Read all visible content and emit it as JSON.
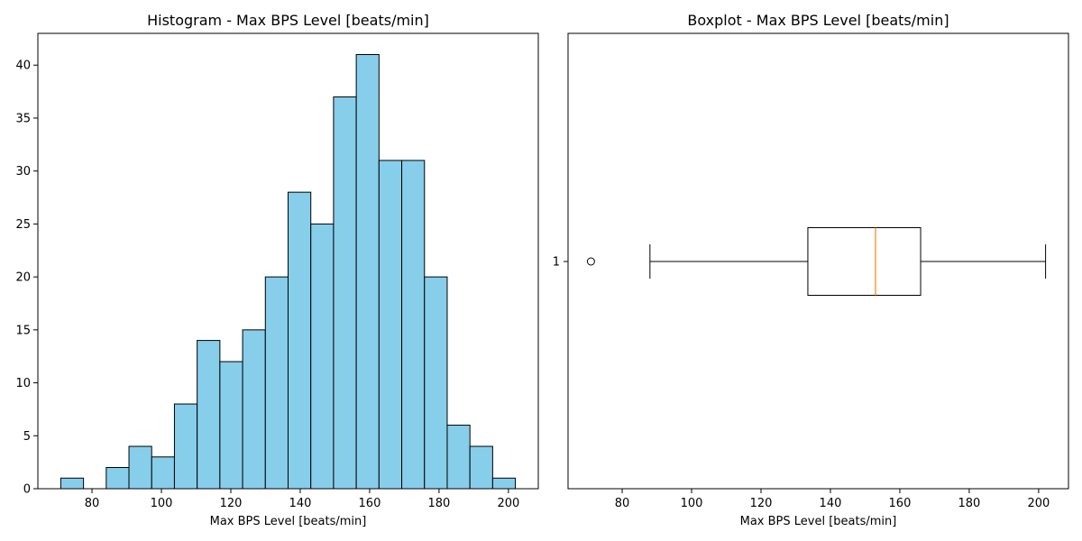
{
  "chart_data": [
    {
      "type": "bar",
      "title": "Histogram - Max BPS Level [beats/min]",
      "xlabel": "Max BPS Level [beats/min]",
      "ylabel": "",
      "xlim": [
        64.4,
        208.6
      ],
      "ylim": [
        0,
        43
      ],
      "xticks": [
        80,
        100,
        120,
        140,
        160,
        180,
        200
      ],
      "yticks": [
        0,
        5,
        10,
        15,
        20,
        25,
        30,
        35,
        40
      ],
      "bar_color": "#87ceeb",
      "edge_color": "#000000",
      "bins": [
        {
          "x0": 71.0,
          "x1": 77.55,
          "count": 1
        },
        {
          "x0": 77.55,
          "x1": 84.1,
          "count": 0
        },
        {
          "x0": 84.1,
          "x1": 90.65,
          "count": 2
        },
        {
          "x0": 90.65,
          "x1": 97.2,
          "count": 4
        },
        {
          "x0": 97.2,
          "x1": 103.75,
          "count": 3
        },
        {
          "x0": 103.75,
          "x1": 110.3,
          "count": 8
        },
        {
          "x0": 110.3,
          "x1": 116.85,
          "count": 14
        },
        {
          "x0": 116.85,
          "x1": 123.4,
          "count": 12
        },
        {
          "x0": 123.4,
          "x1": 129.95,
          "count": 15
        },
        {
          "x0": 129.95,
          "x1": 136.5,
          "count": 20
        },
        {
          "x0": 136.5,
          "x1": 143.05,
          "count": 28
        },
        {
          "x0": 143.05,
          "x1": 149.6,
          "count": 25
        },
        {
          "x0": 149.6,
          "x1": 156.15,
          "count": 37
        },
        {
          "x0": 156.15,
          "x1": 162.7,
          "count": 41
        },
        {
          "x0": 162.7,
          "x1": 169.25,
          "count": 31
        },
        {
          "x0": 169.25,
          "x1": 175.8,
          "count": 31
        },
        {
          "x0": 175.8,
          "x1": 182.35,
          "count": 20
        },
        {
          "x0": 182.35,
          "x1": 188.9,
          "count": 6
        },
        {
          "x0": 188.9,
          "x1": 195.45,
          "count": 4
        },
        {
          "x0": 195.45,
          "x1": 202.0,
          "count": 1
        }
      ]
    },
    {
      "type": "boxplot",
      "title": "Boxplot - Max BPS Level [beats/min]",
      "xlabel": "Max BPS Level [beats/min]",
      "ylabel": "",
      "xlim": [
        64.4,
        208.6
      ],
      "xticks": [
        80,
        100,
        120,
        140,
        160,
        180,
        200
      ],
      "ytick_label": "1",
      "box": {
        "whisker_low": 88,
        "q1": 133.5,
        "median": 153,
        "q3": 166,
        "whisker_high": 202
      },
      "outliers": [
        71
      ],
      "median_color": "#ff7f0e",
      "line_color": "#000000"
    }
  ]
}
